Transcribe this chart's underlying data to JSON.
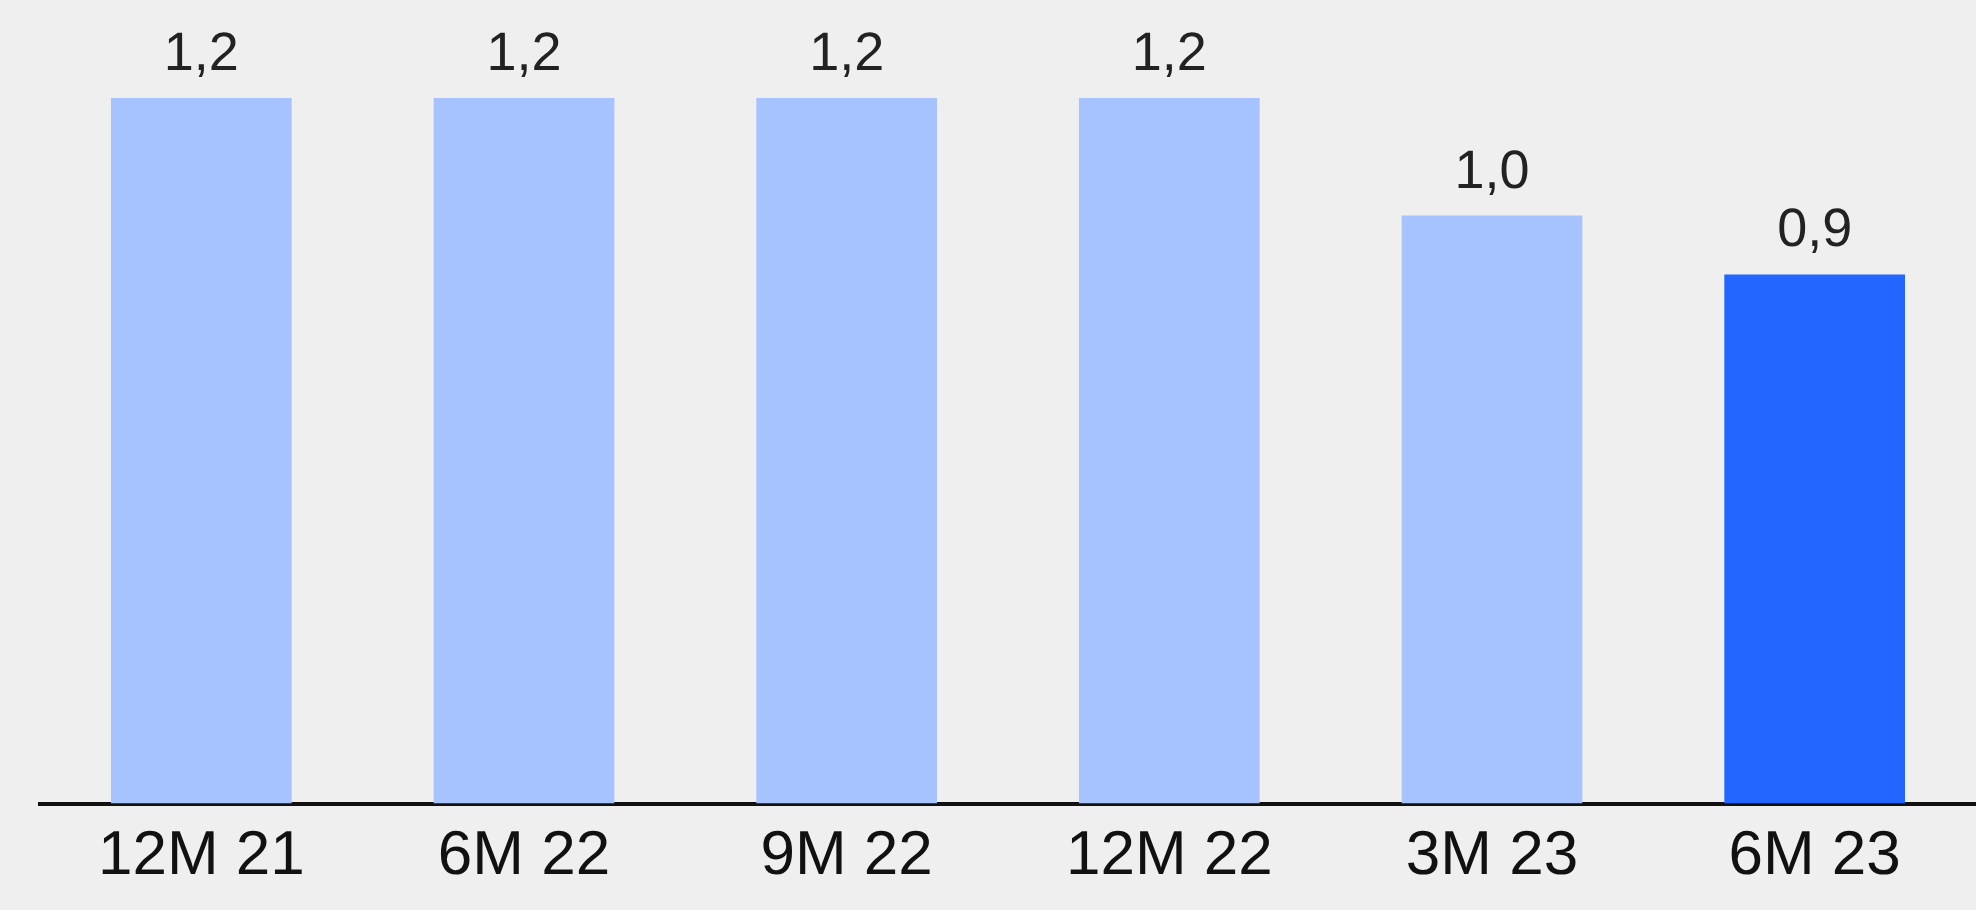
{
  "chart_data": {
    "type": "bar",
    "categories": [
      "12M 21",
      "6M 22",
      "9M 22",
      "12M 22",
      "3M 23",
      "6M 23"
    ],
    "values": [
      1.2,
      1.2,
      1.2,
      1.2,
      1.0,
      0.9
    ],
    "value_labels": [
      "1,2",
      "1,2",
      "1,2",
      "1,2",
      "1,0",
      "0,9"
    ],
    "colors": [
      "#a6c3ff",
      "#a6c3ff",
      "#a6c3ff",
      "#a6c3ff",
      "#a6c3ff",
      "#2266ff"
    ],
    "ylim": [
      0,
      1.2
    ],
    "tick_labels": "x"
  }
}
